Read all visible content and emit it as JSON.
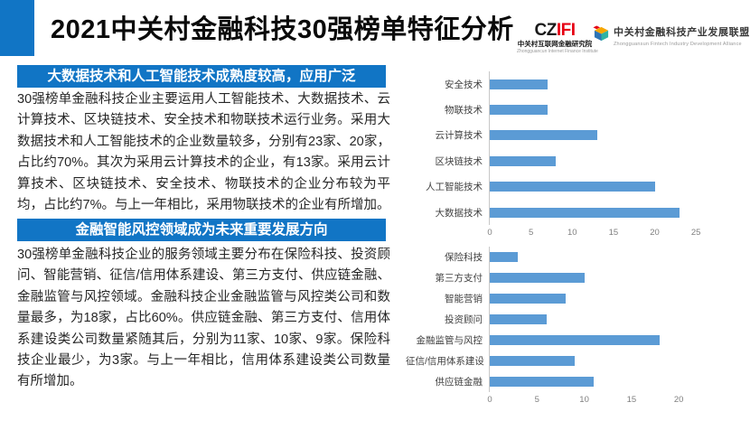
{
  "slide": {
    "title": "2021中关村金融科技30强榜单特征分析"
  },
  "logos": {
    "czifi": {
      "wordmark_dark": "CZ",
      "wordmark_red": "IFI",
      "name_cn": "中关村互联网金融研究院",
      "name_en": "Zhongguancun Internet Finance Institute"
    },
    "alliance": {
      "name_cn": "中关村金融科技产业发展联盟",
      "name_en": "Zhongguansun Fintech Industry Development Alliance"
    }
  },
  "sections": [
    {
      "heading": "大数据技术和人工智能技术成熟度较高，应用广泛",
      "body": "30强榜单金融科技企业主要运用人工智能技术、大数据技术、云计算技术、区块链技术、安全技术和物联技术运行业务。采用大数据技术和人工智能技术的企业数量较多，分别有23家、20家，占比约70%。其次为采用云计算技术的企业，有13家。采用云计算技术、区块链技术、安全技术、物联技术的企业分布较为平均，占比约7%。与上一年相比，采用物联技术的企业有所增加。"
    },
    {
      "heading": "金融智能风控领域成为未来重要发展方向",
      "body": "30强榜单金融科技企业的服务领域主要分布在保险科技、投资顾问、智能营销、征信/信用体系建设、第三方支付、供应链金融、金融监管与风控领域。金融科技企业金融监管与风控类公司和数量最多，为18家，占比60%。供应链金融、第三方支付、信用体系建设类公司数量紧随其后，分别为11家、10家、9家。保险科技企业最少，为3家。与上一年相比，信用体系建设类公司数量有所增加。"
    }
  ],
  "colors": {
    "accent_blue": "#1175C5",
    "bar_blue": "#5B9BD5",
    "czifi_red": "#E60012",
    "tick_gray": "#7F7F7F"
  },
  "chart_data": [
    {
      "type": "bar",
      "orientation": "horizontal",
      "title": "",
      "xlabel": "",
      "ylabel": "",
      "grid": false,
      "legend": false,
      "categories": [
        "安全技术",
        "物联技术",
        "云计算技术",
        "区块链技术",
        "人工智能技术",
        "大数据技术"
      ],
      "values": [
        7,
        7,
        13,
        8,
        20,
        23
      ],
      "ticks": [
        0,
        5,
        10,
        15,
        20,
        25
      ],
      "xlim": [
        0,
        27.5
      ],
      "bar_color": "#5B9BD5"
    },
    {
      "type": "bar",
      "orientation": "horizontal",
      "title": "",
      "xlabel": "",
      "ylabel": "",
      "grid": false,
      "legend": false,
      "categories": [
        "保险科技",
        "第三方支付",
        "智能营销",
        "投资顾问",
        "金融监管与风控",
        "征信/信用体系建设",
        "供应链金融"
      ],
      "values": [
        3,
        10,
        8,
        6,
        18,
        9,
        11
      ],
      "ticks": [
        0,
        5,
        10,
        15,
        20
      ],
      "xlim": [
        0,
        24
      ],
      "bar_color": "#5B9BD5"
    }
  ]
}
